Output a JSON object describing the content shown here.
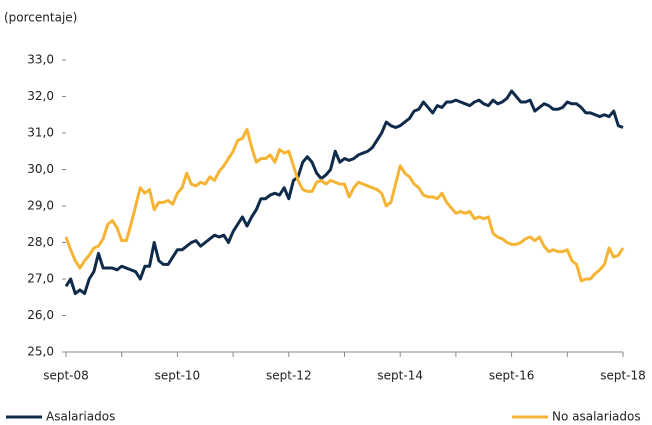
{
  "chart_data": {
    "type": "line",
    "ylabel": "(porcentaje)",
    "categories": [
      "sept-08",
      null,
      null,
      null,
      null,
      null,
      null,
      null,
      null,
      null,
      null,
      null,
      null,
      null,
      null,
      null,
      null,
      null,
      null,
      null,
      null,
      null,
      null,
      null,
      "sept-10",
      null,
      null,
      null,
      null,
      null,
      null,
      null,
      null,
      null,
      null,
      null,
      null,
      null,
      null,
      null,
      null,
      null,
      null,
      null,
      null,
      null,
      null,
      null,
      "sept-12",
      null,
      null,
      null,
      null,
      null,
      null,
      null,
      null,
      null,
      null,
      null,
      null,
      null,
      null,
      null,
      null,
      null,
      null,
      null,
      null,
      null,
      null,
      null,
      "sept-14",
      null,
      null,
      null,
      null,
      null,
      null,
      null,
      null,
      null,
      null,
      null,
      null,
      null,
      null,
      null,
      null,
      null,
      null,
      null,
      null,
      null,
      null,
      null,
      "sept-16",
      null,
      null,
      null,
      null,
      null,
      null,
      null,
      null,
      null,
      null,
      null,
      null,
      null,
      null,
      null,
      null,
      null,
      null,
      null,
      null,
      null,
      null,
      null,
      "sept-18"
    ],
    "series": [
      {
        "name": "Asalariados",
        "color": "#0f2b4b",
        "values": [
          26.8,
          27.0,
          26.6,
          26.7,
          26.6,
          27.0,
          27.2,
          27.7,
          27.3,
          27.3,
          27.3,
          27.25,
          27.35,
          27.3,
          27.25,
          27.2,
          27.0,
          27.35,
          27.35,
          28.0,
          27.5,
          27.4,
          27.4,
          27.6,
          27.8,
          27.8,
          27.9,
          28.0,
          28.05,
          27.9,
          28.0,
          28.1,
          28.2,
          28.15,
          28.2,
          28.0,
          28.3,
          28.5,
          28.7,
          28.45,
          28.7,
          28.9,
          29.2,
          29.2,
          29.3,
          29.35,
          29.3,
          29.5,
          29.2,
          29.7,
          29.8,
          30.2,
          30.35,
          30.2,
          29.9,
          29.75,
          29.85,
          30.0,
          30.5,
          30.2,
          30.3,
          30.25,
          30.3,
          30.4,
          30.45,
          30.5,
          30.6,
          30.8,
          31.0,
          31.3,
          31.2,
          31.15,
          31.2,
          31.3,
          31.4,
          31.6,
          31.65,
          31.85,
          31.7,
          31.55,
          31.75,
          31.7,
          31.85,
          31.85,
          31.9,
          31.85,
          31.8,
          31.75,
          31.85,
          31.9,
          31.8,
          31.75,
          31.9,
          31.8,
          31.85,
          31.95,
          32.15,
          32.0,
          31.85,
          31.85,
          31.9,
          31.6,
          31.7,
          31.8,
          31.75,
          31.65,
          31.65,
          31.7,
          31.85,
          31.8,
          31.8,
          31.7,
          31.55,
          31.55,
          31.5,
          31.45,
          31.5,
          31.45,
          31.6,
          31.2,
          31.15
        ]
      },
      {
        "name": "No asalariados",
        "color": "#f6b434",
        "values": [
          28.15,
          27.8,
          27.5,
          27.3,
          27.5,
          27.65,
          27.85,
          27.9,
          28.1,
          28.5,
          28.6,
          28.4,
          28.05,
          28.05,
          28.5,
          29.0,
          29.5,
          29.35,
          29.45,
          28.9,
          29.1,
          29.1,
          29.15,
          29.05,
          29.35,
          29.5,
          29.9,
          29.6,
          29.55,
          29.65,
          29.6,
          29.8,
          29.7,
          29.95,
          30.1,
          30.3,
          30.5,
          30.8,
          30.85,
          31.1,
          30.6,
          30.2,
          30.3,
          30.3,
          30.4,
          30.2,
          30.55,
          30.45,
          30.5,
          30.1,
          29.7,
          29.45,
          29.4,
          29.4,
          29.65,
          29.7,
          29.6,
          29.7,
          29.65,
          29.6,
          29.6,
          29.25,
          29.5,
          29.65,
          29.6,
          29.55,
          29.5,
          29.45,
          29.35,
          29.0,
          29.1,
          29.6,
          30.1,
          29.9,
          29.8,
          29.6,
          29.5,
          29.3,
          29.25,
          29.25,
          29.2,
          29.35,
          29.1,
          28.95,
          28.8,
          28.85,
          28.8,
          28.85,
          28.65,
          28.7,
          28.65,
          28.7,
          28.25,
          28.15,
          28.1,
          28.0,
          27.95,
          27.95,
          28.0,
          28.1,
          28.15,
          28.05,
          28.15,
          27.9,
          27.75,
          27.8,
          27.75,
          27.75,
          27.8,
          27.5,
          27.4,
          26.95,
          27.0,
          27.0,
          27.15,
          27.25,
          27.4,
          27.85,
          27.6,
          27.65,
          27.85
        ]
      }
    ],
    "ylim": [
      25,
      33
    ],
    "yticks": [
      {
        "value": 25,
        "label": "25,0"
      },
      {
        "value": 26,
        "label": "26,0"
      },
      {
        "value": 27,
        "label": "27,0"
      },
      {
        "value": 28,
        "label": "28,0"
      },
      {
        "value": 29,
        "label": "29,0"
      },
      {
        "value": 30,
        "label": "30,0"
      },
      {
        "value": 31,
        "label": "31,0"
      },
      {
        "value": 32,
        "label": "32,0"
      },
      {
        "value": 33,
        "label": "33,0"
      }
    ],
    "grid": false
  }
}
